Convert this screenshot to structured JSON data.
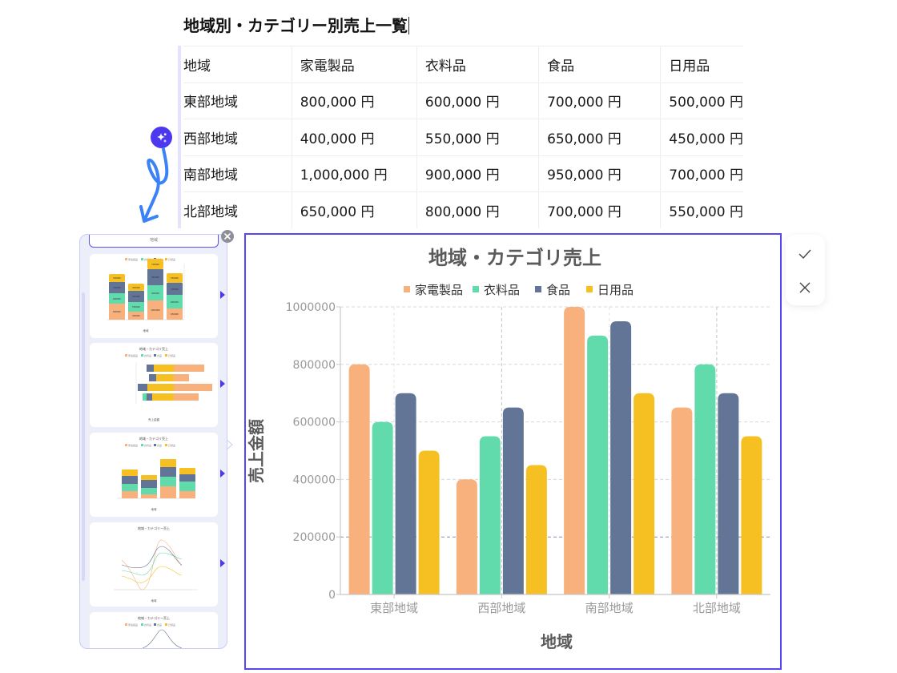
{
  "document": {
    "title": "地域別・カテゴリー別売上一覧"
  },
  "table": {
    "headers": [
      "地域",
      "家電製品",
      "衣料品",
      "食品",
      "日用品"
    ],
    "rows": [
      [
        "東部地域",
        "800,000 円",
        "600,000 円",
        "700,000 円",
        "500,000 円"
      ],
      [
        "西部地域",
        "400,000 円",
        "550,000 円",
        "650,000 円",
        "450,000 円"
      ],
      [
        "南部地域",
        "1,000,000 円",
        "900,000 円",
        "950,000 円",
        "700,000 円"
      ],
      [
        "北部地域",
        "650,000 円",
        "800,000 円",
        "700,000 円",
        "550,000 円"
      ]
    ]
  },
  "ai_badge": {
    "icon": "sparkle-icon",
    "color": "#4b38ef"
  },
  "thumbnails": {
    "top_tab_label": "地域",
    "items": [
      {
        "type": "stacked-bar",
        "title": ""
      },
      {
        "type": "horizontal-stacked-bar",
        "title": "地域・カテゴリ売上"
      },
      {
        "type": "stacked-bar",
        "title": "地域・カテゴリ売上"
      },
      {
        "type": "line",
        "title": "地域・カテゴリー売上"
      },
      {
        "type": "line",
        "title": "地域・カテゴリー売上"
      }
    ]
  },
  "actions": {
    "accept_icon": "check-icon",
    "reject_icon": "close-icon"
  },
  "colors": {
    "accent": "#5847f0",
    "家電製品": "#f8b07c",
    "衣料品": "#61dbac",
    "食品": "#637596",
    "日用品": "#f6c022"
  },
  "chart_data": {
    "type": "bar",
    "title": "地域・カテゴリ売上",
    "xlabel": "地域",
    "ylabel": "売上金額",
    "categories": [
      "東部地域",
      "西部地域",
      "南部地域",
      "北部地域"
    ],
    "series": [
      {
        "name": "家電製品",
        "color": "#f8b07c",
        "values": [
          800000,
          400000,
          1000000,
          650000
        ]
      },
      {
        "name": "衣料品",
        "color": "#61dbac",
        "values": [
          600000,
          550000,
          900000,
          800000
        ]
      },
      {
        "name": "食品",
        "color": "#637596",
        "values": [
          700000,
          650000,
          950000,
          700000
        ]
      },
      {
        "name": "日用品",
        "color": "#f6c022",
        "values": [
          500000,
          450000,
          700000,
          550000
        ]
      }
    ],
    "ylim": [
      0,
      1000000
    ],
    "yticks": [
      0,
      200000,
      400000,
      600000,
      800000,
      1000000
    ],
    "grid": true,
    "legend_position": "top"
  }
}
